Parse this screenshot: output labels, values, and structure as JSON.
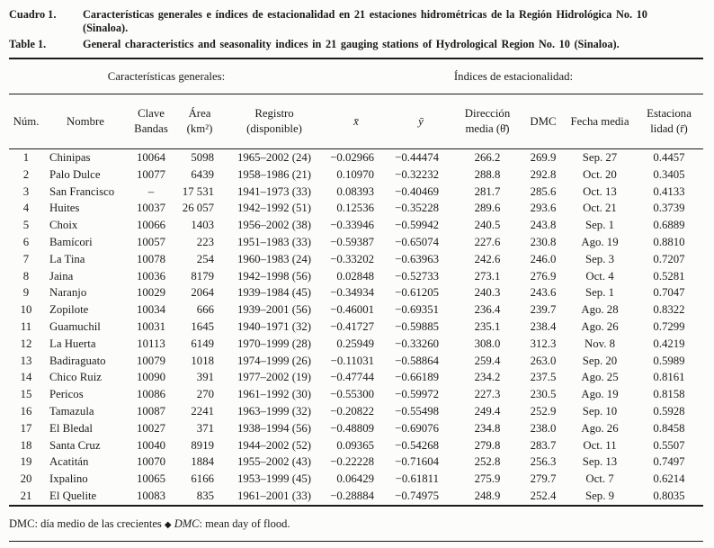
{
  "colors": {
    "ink": "#1b1b1b",
    "background": "#fcfcfa"
  },
  "titles": {
    "es": {
      "label": "Cuadro 1.",
      "lines": [
        "Características generales e índices de estacionalidad en 21 estaciones hidrométricas de la Región Hidrológica No. 10",
        "(Sinaloa)."
      ]
    },
    "en": {
      "label": "Table 1.",
      "lines": [
        "General characteristics and seasonality indices in 21 gauging stations of Hydrological Region No. 10 (Sinaloa)."
      ]
    }
  },
  "table": {
    "group_headers": {
      "left": "Características generales:",
      "right": "Índices de estacionalidad:"
    },
    "columns": [
      {
        "key": "num",
        "lines": [
          "Núm."
        ]
      },
      {
        "key": "nombre",
        "lines": [
          "Nombre"
        ]
      },
      {
        "key": "clave",
        "lines": [
          "Clave",
          "Bandas"
        ]
      },
      {
        "key": "area",
        "lines": [
          "Área",
          "(km²)"
        ]
      },
      {
        "key": "registro",
        "lines": [
          "Registro",
          "(disponible)"
        ]
      },
      {
        "key": "xbar",
        "lines": [
          "x̄"
        ]
      },
      {
        "key": "ybar",
        "lines": [
          "ȳ"
        ]
      },
      {
        "key": "direccion",
        "lines": [
          "Dirección",
          "media (θ̄)"
        ]
      },
      {
        "key": "dmc",
        "lines": [
          "DMC"
        ]
      },
      {
        "key": "fecha",
        "lines": [
          "Fecha media"
        ]
      },
      {
        "key": "estacionalidad",
        "lines": [
          "Estaciona",
          "lidad (r̄)"
        ]
      }
    ],
    "rows": [
      [
        "1",
        "Chinipas",
        "10064",
        "5098",
        "1965–2002 (24)",
        "−0.02966",
        "−0.44474",
        "266.2",
        "269.9",
        "Sep. 27",
        "0.4457"
      ],
      [
        "2",
        "Palo Dulce",
        "10077",
        "6439",
        "1958–1986 (21)",
        "0.10970",
        "−0.32232",
        "288.8",
        "292.8",
        "Oct. 20",
        "0.3405"
      ],
      [
        "3",
        "San Francisco",
        "–",
        "17 531",
        "1941–1973 (33)",
        "0.08393",
        "−0.40469",
        "281.7",
        "285.6",
        "Oct. 13",
        "0.4133"
      ],
      [
        "4",
        "Huites",
        "10037",
        "26 057",
        "1942–1992 (51)",
        "0.12536",
        "−0.35228",
        "289.6",
        "293.6",
        "Oct. 21",
        "0.3739"
      ],
      [
        "5",
        "Choix",
        "10066",
        "1403",
        "1956–2002 (38)",
        "−0.33946",
        "−0.59942",
        "240.5",
        "243.8",
        "Sep. 1",
        "0.6889"
      ],
      [
        "6",
        "Bamícori",
        "10057",
        "223",
        "1951–1983 (33)",
        "−0.59387",
        "−0.65074",
        "227.6",
        "230.8",
        "Ago. 19",
        "0.8810"
      ],
      [
        "7",
        "La Tina",
        "10078",
        "254",
        "1960–1983 (24)",
        "−0.33202",
        "−0.63963",
        "242.6",
        "246.0",
        "Sep. 3",
        "0.7207"
      ],
      [
        "8",
        "Jaina",
        "10036",
        "8179",
        "1942–1998 (56)",
        "0.02848",
        "−0.52733",
        "273.1",
        "276.9",
        "Oct. 4",
        "0.5281"
      ],
      [
        "9",
        "Naranjo",
        "10029",
        "2064",
        "1939–1984 (45)",
        "−0.34934",
        "−0.61205",
        "240.3",
        "243.6",
        "Sep. 1",
        "0.7047"
      ],
      [
        "10",
        "Zopilote",
        "10034",
        "666",
        "1939–2001 (56)",
        "−0.46001",
        "−0.69351",
        "236.4",
        "239.7",
        "Ago. 28",
        "0.8322"
      ],
      [
        "11",
        "Guamuchil",
        "10031",
        "1645",
        "1940–1971 (32)",
        "−0.41727",
        "−0.59885",
        "235.1",
        "238.4",
        "Ago. 26",
        "0.7299"
      ],
      [
        "12",
        "La Huerta",
        "10113",
        "6149",
        "1970–1999 (28)",
        "0.25949",
        "−0.33260",
        "308.0",
        "312.3",
        "Nov. 8",
        "0.4219"
      ],
      [
        "13",
        "Badiraguato",
        "10079",
        "1018",
        "1974–1999 (26)",
        "−0.11031",
        "−0.58864",
        "259.4",
        "263.0",
        "Sep. 20",
        "0.5989"
      ],
      [
        "14",
        "Chico Ruiz",
        "10090",
        "391",
        "1977–2002 (19)",
        "−0.47744",
        "−0.66189",
        "234.2",
        "237.5",
        "Ago. 25",
        "0.8161"
      ],
      [
        "15",
        "Pericos",
        "10086",
        "270",
        "1961–1992 (30)",
        "−0.55300",
        "−0.59972",
        "227.3",
        "230.5",
        "Ago. 19",
        "0.8158"
      ],
      [
        "16",
        "Tamazula",
        "10087",
        "2241",
        "1963–1999 (32)",
        "−0.20822",
        "−0.55498",
        "249.4",
        "252.9",
        "Sep. 10",
        "0.5928"
      ],
      [
        "17",
        "El Bledal",
        "10027",
        "371",
        "1938–1994 (56)",
        "−0.48809",
        "−0.69076",
        "234.8",
        "238.0",
        "Ago. 26",
        "0.8458"
      ],
      [
        "18",
        "Santa Cruz",
        "10040",
        "8919",
        "1944–2002 (52)",
        "0.09365",
        "−0.54268",
        "279.8",
        "283.7",
        "Oct. 11",
        "0.5507"
      ],
      [
        "19",
        "Acatitán",
        "10070",
        "1884",
        "1955–2002 (43)",
        "−0.22228",
        "−0.71604",
        "252.8",
        "256.3",
        "Sep. 13",
        "0.7497"
      ],
      [
        "20",
        "Ixpalino",
        "10065",
        "6166",
        "1953–1999 (45)",
        "0.06429",
        "−0.61811",
        "275.9",
        "279.7",
        "Oct. 7",
        "0.6214"
      ],
      [
        "21",
        "El Quelite",
        "10083",
        "835",
        "1961–2001 (33)",
        "−0.28884",
        "−0.74975",
        "248.9",
        "252.4",
        "Sep. 9",
        "0.8035"
      ]
    ]
  },
  "footnote": {
    "es": "DMC: día medio de las crecientes",
    "separator": "◆",
    "en_dmc": "DMC",
    "en_rest": ": mean day of flood."
  }
}
